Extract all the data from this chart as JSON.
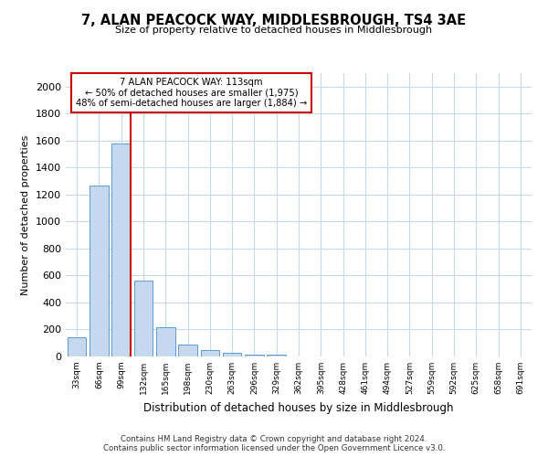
{
  "title": "7, ALAN PEACOCK WAY, MIDDLESBROUGH, TS4 3AE",
  "subtitle": "Size of property relative to detached houses in Middlesbrough",
  "xlabel": "Distribution of detached houses by size in Middlesbrough",
  "ylabel": "Number of detached properties",
  "footer_line1": "Contains HM Land Registry data © Crown copyright and database right 2024.",
  "footer_line2": "Contains public sector information licensed under the Open Government Licence v3.0.",
  "bin_labels": [
    "33sqm",
    "66sqm",
    "99sqm",
    "132sqm",
    "165sqm",
    "198sqm",
    "230sqm",
    "263sqm",
    "296sqm",
    "329sqm",
    "362sqm",
    "395sqm",
    "428sqm",
    "461sqm",
    "494sqm",
    "527sqm",
    "559sqm",
    "592sqm",
    "625sqm",
    "658sqm",
    "691sqm"
  ],
  "bar_values": [
    140,
    1270,
    1580,
    565,
    215,
    90,
    45,
    25,
    15,
    15,
    0,
    0,
    0,
    0,
    0,
    0,
    0,
    0,
    0,
    0,
    0
  ],
  "bar_color": "#c5d8f0",
  "bar_edge_color": "#5b9bd5",
  "grid_color": "#c8d8e8",
  "ylim": [
    0,
    2100
  ],
  "yticks": [
    0,
    200,
    400,
    600,
    800,
    1000,
    1200,
    1400,
    1600,
    1800,
    2000
  ],
  "annotation_line1": "7 ALAN PEACOCK WAY: 113sqm",
  "annotation_line2": "← 50% of detached houses are smaller (1,975)",
  "annotation_line3": "48% of semi-detached houses are larger (1,884) →",
  "annotation_box_color": "#ffffff",
  "annotation_box_edge": "#cc0000",
  "red_line_color": "#cc0000",
  "background_color": "#ffffff"
}
